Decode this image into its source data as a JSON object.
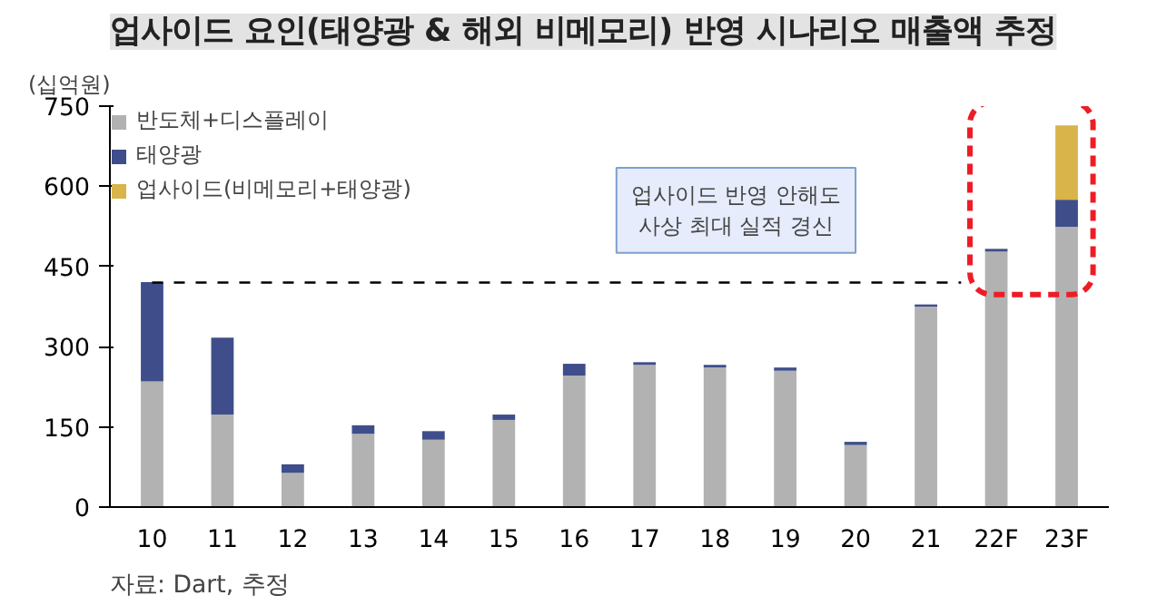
{
  "chart_data": {
    "type": "bar",
    "title": "업사이드 요인(태양광 & 해외 비메모리) 반영 시나리오 매출액 추정",
    "ylabel": "(십억원)",
    "categories": [
      "10",
      "11",
      "12",
      "13",
      "14",
      "15",
      "16",
      "17",
      "18",
      "19",
      "20",
      "21",
      "22F",
      "23F"
    ],
    "stacked": true,
    "series": [
      {
        "name": "반도체+디스플레이",
        "color": "#b2b2b2",
        "values": [
          235,
          173,
          64,
          137,
          126,
          163,
          246,
          266,
          261,
          255,
          116,
          375,
          478,
          524
        ]
      },
      {
        "name": "태양광",
        "color": "#3f4e8a",
        "values": [
          186,
          144,
          16,
          16,
          16,
          10,
          22,
          5,
          5,
          6,
          6,
          4,
          5,
          51
        ]
      },
      {
        "name": "업사이드(비메모리+태양광)",
        "color": "#d9b44a",
        "values": [
          null,
          null,
          null,
          null,
          null,
          null,
          null,
          null,
          null,
          null,
          null,
          null,
          null,
          139
        ]
      }
    ],
    "ylim": [
      0,
      750
    ],
    "yticks": [
      0,
      150,
      300,
      450,
      600,
      750
    ],
    "ref_lines": [
      {
        "axis": "y",
        "value": 420,
        "color": "#000000",
        "line_style": "dashed"
      }
    ],
    "annotations": [
      "업사이드 반영 안해도\n사상 최대 실적 경신",
      "자료: Dart, 추정"
    ],
    "legend": "top left",
    "grid": false
  }
}
